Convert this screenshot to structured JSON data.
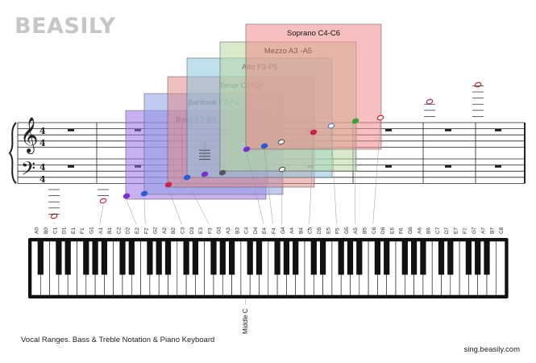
{
  "brand": {
    "logo_text": "BEASILY",
    "site": "sing.beasily.com"
  },
  "caption": "Vocal Ranges. Bass & Treble Notation & Piano Keyboard",
  "middle_c_label": "Middle C",
  "clefs": {
    "treble": "𝄞",
    "bass": "𝄢",
    "time_top": "4",
    "time_bottom": "4"
  },
  "voice_ranges": [
    {
      "label": "Bass E2-E4",
      "color": "#9a6fe6"
    },
    {
      "label": "Baritone F2-F4",
      "color": "#8ea0e8"
    },
    {
      "label": "Tenor C3-C5",
      "color": "#e08a8a"
    },
    {
      "label": "Alto F3-F5",
      "color": "#8cc7e0"
    },
    {
      "label": "Mezzo A3 -A5",
      "color": "#b8d9a0"
    },
    {
      "label": "Soprano C4-C6",
      "color": "#f08a8a"
    }
  ],
  "key_labels": [
    "A0",
    "B0",
    "C1",
    "D1",
    "E1",
    "F1",
    "G1",
    "A1",
    "B1",
    "C2",
    "D2",
    "E2",
    "F2",
    "G2",
    "A2",
    "B2",
    "C3",
    "D3",
    "E3",
    "F3",
    "G3",
    "A3",
    "B3",
    "C4",
    "D4",
    "E4",
    "F4",
    "G4",
    "A4",
    "B4",
    "C5",
    "D5",
    "E5",
    "F5",
    "G5",
    "A5",
    "B5",
    "C6",
    "D6",
    "E6",
    "F6",
    "G6",
    "A6",
    "B6",
    "C7",
    "D7",
    "E7",
    "F7",
    "G7",
    "A7",
    "B7",
    "C8"
  ],
  "colors": {
    "bass": "#7a2fd0",
    "baritone": "#2c5bd8",
    "tenor": "#c8234d",
    "alto": "#5aa8d8",
    "mezzo": "#3aa336",
    "soprano": "#d21e1e",
    "staff": "#222222"
  }
}
